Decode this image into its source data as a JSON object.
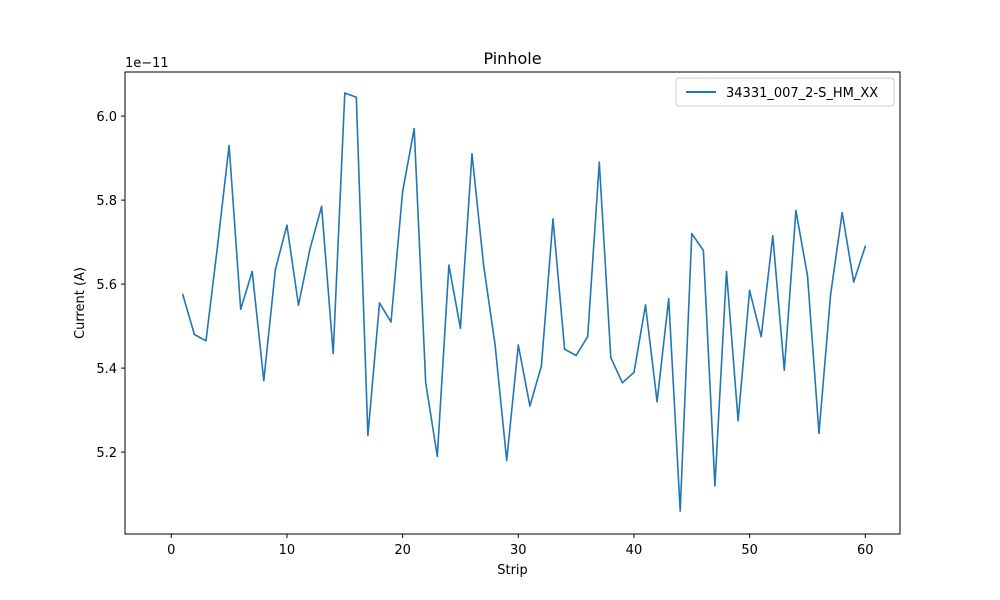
{
  "chart_data": {
    "type": "line",
    "title": "Pinhole",
    "xlabel": "Strip",
    "ylabel": "Current (A)",
    "y_offset_text": "1e−11",
    "y_scale_factor": 1e-11,
    "xlim": [
      -4,
      63
    ],
    "ylim": [
      5.005,
      6.105
    ],
    "x_ticks": [
      0,
      10,
      20,
      30,
      40,
      50,
      60
    ],
    "x_tick_labels": [
      "0",
      "10",
      "20",
      "30",
      "40",
      "50",
      "60"
    ],
    "y_ticks": [
      5.2,
      5.4,
      5.6,
      5.8,
      6.0
    ],
    "y_tick_labels": [
      "5.2",
      "5.4",
      "5.6",
      "5.8",
      "6.0"
    ],
    "grid": false,
    "legend_position": "top-right",
    "series": [
      {
        "name": "34331_007_2-S_HM_XX",
        "color": "#1f77b4",
        "x": [
          1,
          2,
          3,
          4,
          5,
          6,
          7,
          8,
          9,
          10,
          11,
          12,
          13,
          14,
          15,
          16,
          17,
          18,
          19,
          20,
          21,
          22,
          23,
          24,
          25,
          26,
          27,
          28,
          29,
          30,
          31,
          32,
          33,
          34,
          35,
          36,
          37,
          38,
          39,
          40,
          41,
          42,
          43,
          44,
          45,
          46,
          47,
          48,
          49,
          50,
          51,
          52,
          53,
          54,
          55,
          56,
          57,
          58,
          59,
          60
        ],
        "values": [
          5.575,
          5.48,
          5.465,
          5.69,
          5.93,
          5.54,
          5.63,
          5.37,
          5.635,
          5.74,
          5.55,
          5.685,
          5.785,
          5.435,
          6.055,
          6.045,
          5.24,
          5.555,
          5.51,
          5.82,
          5.97,
          5.365,
          5.19,
          5.645,
          5.495,
          5.91,
          5.645,
          5.455,
          5.18,
          5.455,
          5.31,
          5.405,
          5.755,
          5.445,
          5.43,
          5.475,
          5.89,
          5.425,
          5.365,
          5.39,
          5.55,
          5.32,
          5.565,
          5.06,
          5.72,
          5.68,
          5.12,
          5.63,
          5.275,
          5.585,
          5.475,
          5.715,
          5.395,
          5.775,
          5.62,
          5.245,
          5.575,
          5.77,
          5.605,
          5.69
        ]
      }
    ]
  }
}
